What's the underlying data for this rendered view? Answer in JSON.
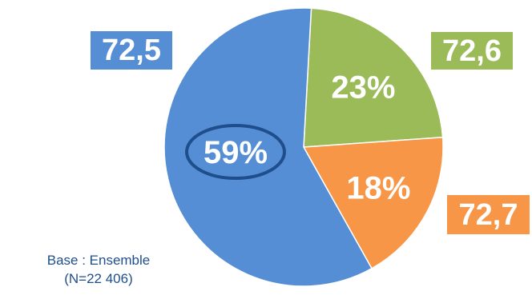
{
  "chart_data": {
    "type": "pie",
    "slices": [
      {
        "label": "72,6",
        "value": 23,
        "pct_label": "23%",
        "color": "#9bbb59"
      },
      {
        "label": "72,7",
        "value": 18,
        "pct_label": "18%",
        "color": "#f79646"
      },
      {
        "label": "72,5",
        "value": 59,
        "pct_label": "59%",
        "color": "#558ed5",
        "highlighted": true
      }
    ],
    "start": "top",
    "direction": "clockwise",
    "highlight_color": "#1f4e8c"
  },
  "note": {
    "line1": "Base : Ensemble",
    "line2": "(N=22 406)"
  }
}
